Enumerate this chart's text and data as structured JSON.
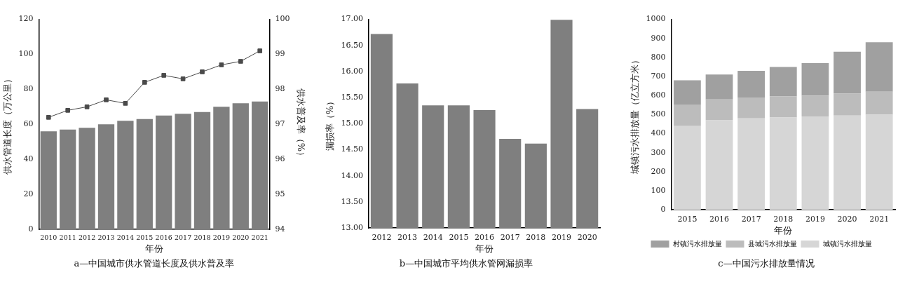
{
  "chart_data": [
    {
      "type": "bar",
      "title": "a—中国城市供水管道长度及供水普及率",
      "xlabel": "年份",
      "ylabel": "供水管道长度（万公里）",
      "y2label": "供水普及率（%）",
      "categories": [
        "2010",
        "2011",
        "2012",
        "2013",
        "2014",
        "2015",
        "2016",
        "2017",
        "2018",
        "2019",
        "2020",
        "2021"
      ],
      "series": [
        {
          "type": "bar",
          "color": "#7f7f7f",
          "values": [
            56,
            57,
            58,
            60,
            62,
            63,
            65,
            66,
            67,
            70,
            72,
            73
          ]
        },
        {
          "type": "line",
          "axis": "y2",
          "color": "#4a4a4a",
          "marker": "square",
          "values": [
            97.2,
            97.4,
            97.5,
            97.7,
            97.6,
            98.2,
            98.4,
            98.3,
            98.5,
            98.7,
            98.8,
            99.1
          ]
        }
      ],
      "ylim": [
        0,
        120
      ],
      "yticks": [
        0,
        20,
        40,
        60,
        80,
        100,
        120
      ],
      "y2lim": [
        94,
        100
      ],
      "y2ticks": [
        94,
        95,
        96,
        97,
        98,
        99,
        100
      ],
      "grid": false,
      "legend": false
    },
    {
      "type": "bar",
      "title": "b—中国城市平均供水管网漏损率",
      "xlabel": "年份",
      "ylabel": "漏损率（%）",
      "categories": [
        "2012",
        "2013",
        "2014",
        "2015",
        "2016",
        "2017",
        "2018",
        "2019",
        "2020"
      ],
      "series": [
        {
          "color": "#7f7f7f",
          "values": [
            16.72,
            15.77,
            15.35,
            15.35,
            15.26,
            14.71,
            14.62,
            16.99,
            15.28
          ]
        }
      ],
      "ylim": [
        13,
        17
      ],
      "yticks": [
        {
          "value": 13,
          "label": "13.00"
        },
        {
          "value": 13.5,
          "label": "13.50"
        },
        {
          "value": 14,
          "label": "14.00"
        },
        {
          "value": 14.5,
          "label": "14.50"
        },
        {
          "value": 15,
          "label": "15.00"
        },
        {
          "value": 15.5,
          "label": "15.50"
        },
        {
          "value": 16,
          "label": "16.00"
        },
        {
          "value": 16.5,
          "label": "16.50"
        },
        {
          "value": 17,
          "label": "17.00"
        }
      ],
      "grid": false,
      "legend": false
    },
    {
      "type": "bar",
      "title": "c—中国污水排放量情况",
      "xlabel": "年份",
      "ylabel": "城镇污水排放量（亿立方米）",
      "stacked": true,
      "categories": [
        "2015",
        "2016",
        "2017",
        "2018",
        "2019",
        "2020",
        "2021"
      ],
      "series": [
        {
          "name": "城镇污水排放量",
          "color": "#d6d6d6",
          "values": [
            440,
            470,
            480,
            485,
            490,
            495,
            500
          ]
        },
        {
          "name": "县城污水排放量",
          "color": "#bcbcbc",
          "values": [
            110,
            110,
            110,
            110,
            110,
            115,
            120
          ]
        },
        {
          "name": "村镇污水排放量",
          "color": "#a0a0a0",
          "values": [
            130,
            130,
            140,
            155,
            170,
            220,
            260
          ]
        }
      ],
      "ylim": [
        0,
        1000
      ],
      "yticks": [
        0,
        100,
        200,
        300,
        400,
        500,
        600,
        700,
        800,
        900,
        1000
      ],
      "grid": false,
      "legend": "bottom"
    }
  ]
}
